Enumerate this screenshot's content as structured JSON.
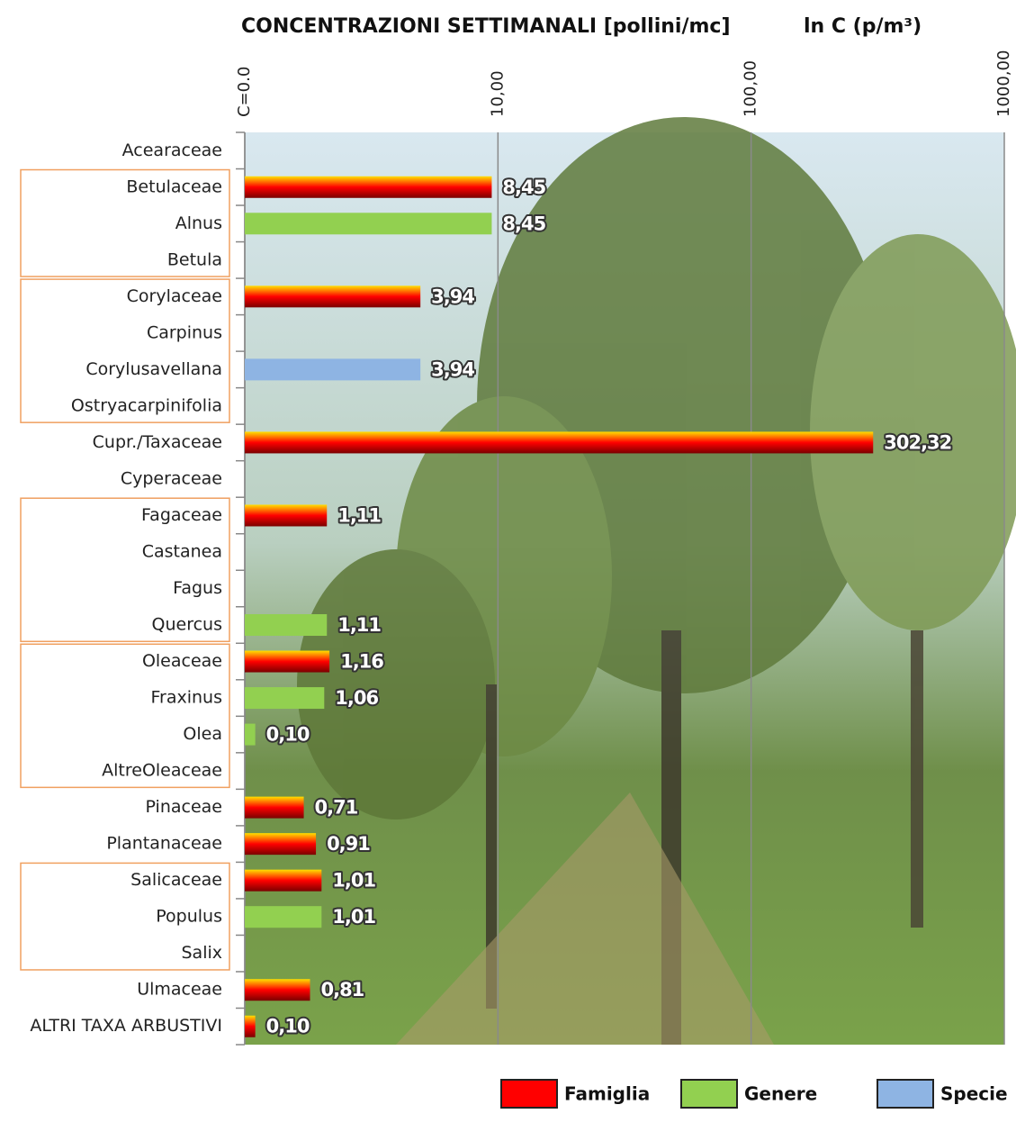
{
  "chart_data": {
    "type": "bar",
    "orientation": "horizontal",
    "title": "CONCENTRAZIONI SETTIMANALI  [pollini/mc]",
    "subtitle": "ln C (p/m³)",
    "xscale": "log",
    "log_offset": 1,
    "xlim": [
      1,
      1000
    ],
    "xticks": [
      {
        "value": 1,
        "label": "C=0.0"
      },
      {
        "value": 10,
        "label": "10,00"
      },
      {
        "value": 100,
        "label": "100,00"
      },
      {
        "value": 1000,
        "label": "1000,00"
      }
    ],
    "grid": true,
    "legend": "bottom-right",
    "categories": [
      "Acearaceae",
      "Betulaceae",
      "Alnus",
      "Betula",
      "Corylaceae",
      "Carpinus",
      "Corylusavellana",
      "Ostryacarpinifolia",
      "Cupr./Taxaceae",
      "Cyperaceae",
      "Fagaceae",
      "Castanea",
      "Fagus",
      "Quercus",
      "Oleaceae",
      "Fraxinus",
      "Olea",
      "AltreOleaceae",
      "Pinaceae",
      "Plantanaceae",
      "Salicaceae",
      "Populus",
      "Salix",
      "Ulmaceae",
      "ALTRI TAXA ARBUSTIVI"
    ],
    "series": [
      {
        "name": "Famiglia",
        "color": "#ff0000",
        "values": [
          null,
          8.45,
          null,
          null,
          3.94,
          null,
          null,
          null,
          302.32,
          null,
          1.11,
          null,
          null,
          null,
          1.16,
          null,
          null,
          null,
          0.71,
          0.91,
          1.01,
          null,
          null,
          0.81,
          0.1
        ],
        "value_labels": [
          null,
          "8,45",
          null,
          null,
          "3,94",
          null,
          null,
          null,
          "302,32",
          null,
          "1,11",
          null,
          null,
          null,
          "1,16",
          null,
          null,
          null,
          "0,71",
          "0,91",
          "1,01",
          null,
          null,
          "0,81",
          "0,10"
        ]
      },
      {
        "name": "Genere",
        "color": "#92d050",
        "values": [
          null,
          null,
          8.45,
          null,
          null,
          null,
          null,
          null,
          null,
          null,
          null,
          null,
          null,
          1.11,
          null,
          1.06,
          0.1,
          null,
          null,
          null,
          null,
          1.01,
          null,
          null,
          null
        ],
        "value_labels": [
          null,
          null,
          "8,45",
          null,
          null,
          null,
          null,
          null,
          null,
          null,
          null,
          null,
          null,
          "1,11",
          null,
          "1,06",
          "0,10",
          null,
          null,
          null,
          null,
          "1,01",
          null,
          null,
          null
        ]
      },
      {
        "name": "Specie",
        "color": "#8eb4e3",
        "values": [
          null,
          null,
          null,
          null,
          null,
          null,
          3.94,
          null,
          null,
          null,
          null,
          null,
          null,
          null,
          null,
          null,
          null,
          null,
          null,
          null,
          null,
          null,
          null,
          null,
          null
        ],
        "value_labels": [
          null,
          null,
          null,
          null,
          null,
          null,
          "3,94",
          null,
          null,
          null,
          null,
          null,
          null,
          null,
          null,
          null,
          null,
          null,
          null,
          null,
          null,
          null,
          null,
          null,
          null
        ]
      }
    ]
  }
}
